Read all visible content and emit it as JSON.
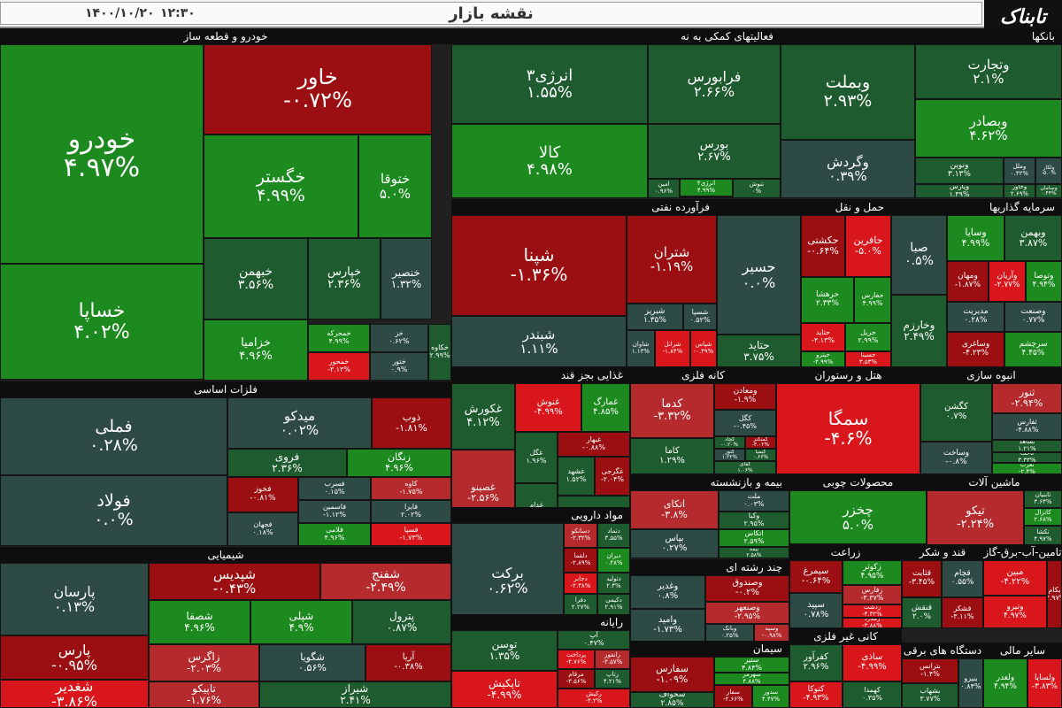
{
  "header": {
    "title": "نقشه بازار",
    "time": "۱۲:۳۰",
    "date": "۱۴۰۰/۱۰/۲۰",
    "logo_text": "تابناک"
  },
  "colors": {
    "dark_red": "#9b0f12",
    "red": "#d8161b",
    "mid_red": "#b52a2c",
    "slate": "#2d4a45",
    "dark_green": "#1e5b2e",
    "green": "#1c8a1f",
    "bright_green": "#17a513",
    "header_bg": "#0e0e0e"
  },
  "chart_data": {
    "type": "heatmap",
    "sectors": [
      {
        "name": "خودرو و قطعه ساز",
        "tiles": [
          {
            "name": "خودرو",
            "value": "۴.۹۷%"
          },
          {
            "name": "خساپا",
            "value": "۴.۰۲%"
          },
          {
            "name": "خاور",
            "value": "-۰.۷۲%"
          },
          {
            "name": "خگستر",
            "value": "۴.۹۹%"
          },
          {
            "name": "ختوقا",
            "value": "۵.۰%"
          },
          {
            "name": "خبهمن",
            "value": "۳.۵۶%"
          },
          {
            "name": "خپارس",
            "value": "۲.۳۶%"
          },
          {
            "name": "خنصیر",
            "value": "۱.۳۲%"
          },
          {
            "name": "خزامیا",
            "value": "۴.۹۶%"
          },
          {
            "name": "خمحرکه",
            "value": "۴.۹۹%"
          },
          {
            "name": "خمحور",
            "value": "-۳.۱۳%"
          },
          {
            "name": "خز",
            "value": "۰.۶۲%"
          },
          {
            "name": "ختور",
            "value": "۰.۹%"
          },
          {
            "name": "خکاوه",
            "value": "۲.۹۹%"
          }
        ]
      },
      {
        "name": "فعالیتهای کمکی به نه",
        "tiles": [
          {
            "name": "انرژی۳",
            "value": "۱.۵۵%"
          },
          {
            "name": "کالا",
            "value": "۴.۹۸%"
          },
          {
            "name": "فرابورس",
            "value": "۲.۶۶%"
          },
          {
            "name": "بورس",
            "value": "۲.۶۷%"
          },
          {
            "name": "امین",
            "value": "۰.۹۶%"
          },
          {
            "name": "انرژی۲",
            "value": "۴.۹۹%"
          },
          {
            "name": "تماوند",
            "value": "۲.۰۷%"
          },
          {
            "name": "تنوش",
            "value": "۰%"
          }
        ]
      },
      {
        "name": "بانکها",
        "tiles": [
          {
            "name": "وبملت",
            "value": "۲.۹۳%"
          },
          {
            "name": "وتجارت",
            "value": "۲.۱%"
          },
          {
            "name": "وبصادر",
            "value": "۴.۶۲%"
          },
          {
            "name": "وگردش",
            "value": "۰.۳۹%"
          },
          {
            "name": "ونوین",
            "value": "۳.۱۳%"
          },
          {
            "name": "وپارس",
            "value": "۱.۳۹%"
          },
          {
            "name": "وملل",
            "value": "۰.۴۲%"
          },
          {
            "name": "وخاور",
            "value": "۲.۶۹%"
          },
          {
            "name": "ولکار",
            "value": "-۵.۰%"
          },
          {
            "name": "وسامان",
            "value": "۰.۴۴%"
          },
          {
            "name": "وکار",
            "value": "۰.۴۸%"
          }
        ]
      },
      {
        "name": "فرآورده نفتی",
        "tiles": [
          {
            "name": "شپنا",
            "value": "-۱.۳۶%"
          },
          {
            "name": "شبندر",
            "value": "۱.۱۱%"
          },
          {
            "name": "شتران",
            "value": "-۱.۱۹%"
          },
          {
            "name": "شبریز",
            "value": "۱.۳۵%"
          },
          {
            "name": "شسپا",
            "value": "۰.۵۲%"
          },
          {
            "name": "شاوان",
            "value": "۱.۱۳%"
          },
          {
            "name": "شرانل",
            "value": "-۱.۸۴%"
          },
          {
            "name": "شپاس",
            "value": "-۰.۴۹%"
          },
          {
            "name": "شراز",
            "value": "-۲.۰۰%"
          }
        ]
      },
      {
        "name": "حمل و نقل",
        "tiles": [
          {
            "name": "حسیر",
            "value": "۰.۰%"
          },
          {
            "name": "حکشتی",
            "value": "-۰.۶۴%"
          },
          {
            "name": "حافرین",
            "value": "-۵.۰%"
          },
          {
            "name": "حتاید",
            "value": "۳.۷۵%"
          },
          {
            "name": "حرهشا",
            "value": "۲.۳۳%"
          },
          {
            "name": "حفارس",
            "value": "۴.۹۹%"
          },
          {
            "name": "حتاید",
            "value": "-۴.۱۳%"
          },
          {
            "name": "حریل",
            "value": "۲.۹۹%"
          },
          {
            "name": "حپترو",
            "value": "-۴.۹۹%"
          },
          {
            "name": "حسینا",
            "value": "۳.۵۳%"
          },
          {
            "name": "حتوکا",
            "value": "-۲.۲۶%"
          }
        ]
      },
      {
        "name": "سرمایه گذاریها",
        "tiles": [
          {
            "name": "صبا",
            "value": "۰.۵%"
          },
          {
            "name": "وسایا",
            "value": "۴.۹۹%"
          },
          {
            "name": "وبهمن",
            "value": "۳.۸۷%"
          },
          {
            "name": "ومهان",
            "value": "-۱.۸۷%"
          },
          {
            "name": "وآریان",
            "value": "-۲.۷۷%"
          },
          {
            "name": "وتوصا",
            "value": "۴.۹۴%"
          },
          {
            "name": "وخارزم",
            "value": "۲.۴۹%"
          },
          {
            "name": "مدیریت",
            "value": "۰.۲۸%"
          },
          {
            "name": "وصنعت",
            "value": "۰.۷۷%"
          },
          {
            "name": "وساغری",
            "value": "-۴.۲۳%"
          },
          {
            "name": "سرچشم",
            "value": "۴.۴۵%"
          }
        ]
      },
      {
        "name": "فلزات اساسی",
        "tiles": [
          {
            "name": "فملی",
            "value": "۰.۲۸%"
          },
          {
            "name": "فولاد",
            "value": "۰.۰%"
          },
          {
            "name": "میدکو",
            "value": "۰.۰۲%"
          },
          {
            "name": "ذوب",
            "value": "-۱.۸۱%"
          },
          {
            "name": "فروی",
            "value": "۲.۳۶%"
          },
          {
            "name": "زنگان",
            "value": "۴.۹۶%"
          },
          {
            "name": "فخوز",
            "value": "-۰.۸۱%"
          },
          {
            "name": "فسرب",
            "value": "۰.۱۵%"
          },
          {
            "name": "کاوه",
            "value": "-۱.۷۵%"
          },
          {
            "name": "فجهان",
            "value": "۰.۱۸%"
          },
          {
            "name": "فاسمین",
            "value": "-۱.۱۲%"
          },
          {
            "name": "فلامی",
            "value": "۴.۹۶%"
          },
          {
            "name": "فایرا",
            "value": "۲.۰۲%"
          },
          {
            "name": "فسپا",
            "value": "-۱.۷۳%"
          }
        ]
      },
      {
        "name": "شیمیایی",
        "tiles": [
          {
            "name": "پارسان",
            "value": "۰.۱۳%"
          },
          {
            "name": "پارس",
            "value": "-۰.۹۵%"
          },
          {
            "name": "شغدیر",
            "value": "-۳.۸۶%"
          },
          {
            "name": "شپدیس",
            "value": "-۰.۴۳%"
          },
          {
            "name": "شفنج",
            "value": "-۲.۴۹%"
          },
          {
            "name": "شصفا",
            "value": "۴.۹۶%"
          },
          {
            "name": "شپلی",
            "value": "۴.۹%"
          },
          {
            "name": "پترول",
            "value": "۰.۸۷%"
          },
          {
            "name": "زاگرس",
            "value": "-۲.۰۳%"
          },
          {
            "name": "شگویا",
            "value": "۰.۵۶%"
          },
          {
            "name": "آریا",
            "value": "-۰.۳۸%"
          },
          {
            "name": "تاپیکو",
            "value": "-۱.۷۶%"
          },
          {
            "name": "شیراز",
            "value": "۲.۴۱%"
          }
        ]
      },
      {
        "name": "غذایی بجز قند",
        "tiles": [
          {
            "name": "غکورش",
            "value": "۴.۱۲%"
          },
          {
            "name": "غنوش",
            "value": "-۴.۹۹%"
          },
          {
            "name": "غمارگ",
            "value": "۴.۸۵%"
          },
          {
            "name": "غصینو",
            "value": "-۲.۵۶%"
          },
          {
            "name": "غگل",
            "value": "۱.۹۶%"
          },
          {
            "name": "غبهار",
            "value": "-۰.۸۸%"
          },
          {
            "name": "غدام",
            "value": "۵.۰%"
          },
          {
            "name": "غشهد",
            "value": "۱.۵۲%"
          },
          {
            "name": "غگرجی",
            "value": "-۲.۰۴%"
          },
          {
            "name": "غگیلا",
            "value": "۱.۹۱%"
          }
        ]
      },
      {
        "name": "کانه فلزی",
        "tiles": [
          {
            "name": "کدما",
            "value": "-۳.۳۲%"
          },
          {
            "name": "ومعادن",
            "value": "-۱.۹%"
          },
          {
            "name": "کگل",
            "value": "-۰.۴۵%"
          },
          {
            "name": "کاما",
            "value": "۱.۲۹%"
          },
          {
            "name": "کچاد",
            "value": "-۰.۲۰%"
          },
          {
            "name": "کمنگنز",
            "value": "-۳.۰۲%"
          },
          {
            "name": "کنور",
            "value": "۱.۲۲%"
          },
          {
            "name": "کیمیا",
            "value": "۰.۶۶%"
          },
          {
            "name": "کفای",
            "value": "۱.۰۶%"
          }
        ]
      },
      {
        "name": "هتل و رستوران",
        "tiles": [
          {
            "name": "سمگا",
            "value": "-۴.۶%"
          }
        ]
      },
      {
        "name": "انبوه سازی",
        "tiles": [
          {
            "name": "کگشن",
            "value": "۰.۷%"
          },
          {
            "name": "ثنور",
            "value": "-۲.۹۴%"
          },
          {
            "name": "ثفارس",
            "value": "-۴.۸۸%"
          },
          {
            "name": "وساخت",
            "value": "-۰.۸%"
          },
          {
            "name": "ثشاهد",
            "value": "۱.۲۱%"
          },
          {
            "name": "ثاخت",
            "value": "۳.۳۳%"
          },
          {
            "name": "ثغرب",
            "value": "-۲.۴%"
          },
          {
            "name": "ثتران",
            "value": "۱.۱۲%"
          },
          {
            "name": "ثامان",
            "value": "۴.۹۵%"
          },
          {
            "name": "کده",
            "value": "۲.۳۳%"
          }
        ]
      },
      {
        "name": "مواد دارویی",
        "tiles": [
          {
            "name": "برکت",
            "value": "۰.۶۲%"
          },
          {
            "name": "دسانکو",
            "value": "-۲.۳۲%"
          },
          {
            "name": "دتماد",
            "value": "۳.۵۵%"
          },
          {
            "name": "دیران",
            "value": "۰.۴۸%"
          },
          {
            "name": "دلقما",
            "value": "-۲.۸۹%"
          },
          {
            "name": "دجابر",
            "value": "-۲.۳۸%"
          },
          {
            "name": "دتولید",
            "value": "۲.۴%"
          },
          {
            "name": "دفرا",
            "value": "۲.۲۷%"
          },
          {
            "name": "دکیمی",
            "value": "۲.۹۱%"
          },
          {
            "name": "دپارس",
            "value": "۰.۶۳%"
          }
        ]
      },
      {
        "name": "بیمه و بازنشسته",
        "tiles": [
          {
            "name": "اتکای",
            "value": "-۳.۸%"
          },
          {
            "name": "ملت",
            "value": "۰.۰۳%"
          },
          {
            "name": "وکبا",
            "value": "۲.۹۵%"
          },
          {
            "name": "بپاس",
            "value": "۰.۲۷%"
          },
          {
            "name": "اتکاس",
            "value": "۲.۵۹%"
          },
          {
            "name": "بیمه",
            "value": "۲.۵۸%"
          }
        ]
      },
      {
        "name": "محصولات چوبی",
        "tiles": [
          {
            "name": "چخزر",
            "value": "۵.۰%"
          }
        ]
      },
      {
        "name": "ماشین آلات",
        "tiles": [
          {
            "name": "تیکو",
            "value": "-۲.۲۴%"
          },
          {
            "name": "ثابنیان",
            "value": "۳.۶۴%"
          },
          {
            "name": "کاتزال",
            "value": "۲.۶۸%"
          },
          {
            "name": "تکشا",
            "value": "۴.۹۷%"
          },
          {
            "name": "تپکو",
            "value": "۱.۱۵%"
          }
        ]
      },
      {
        "name": "رایانه",
        "tiles": [
          {
            "name": "توسن",
            "value": "۱.۳۵%"
          },
          {
            "name": "تاپکیش",
            "value": "-۴.۹۹%"
          },
          {
            "name": "آپ",
            "value": "۰.۴۷%"
          },
          {
            "name": "پرداخت",
            "value": "-۴.۷۶%"
          },
          {
            "name": "رانفور",
            "value": "-۴.۵۷%"
          },
          {
            "name": "رتاپ",
            "value": "۴.۲۱%"
          },
          {
            "name": "مرقام",
            "value": "-۳.۵۶%"
          },
          {
            "name": "رکیش",
            "value": "-۴.۲%"
          }
        ]
      },
      {
        "name": "چند رشته ای",
        "tiles": [
          {
            "name": "وغدیر",
            "value": "۰.۸%"
          },
          {
            "name": "وصندوق",
            "value": "-۰.۲%"
          },
          {
            "name": "وصنعهر",
            "value": "-۲.۹۵%"
          },
          {
            "name": "وامید",
            "value": "-۱.۷۳%"
          },
          {
            "name": "وبانک",
            "value": "۰.۲۵%"
          },
          {
            "name": "وسپه",
            "value": "-۰.۹۸%"
          },
          {
            "name": "ورنا",
            "value": "-۵.۲۸%"
          }
        ]
      },
      {
        "name": "سیمان",
        "tiles": [
          {
            "name": "سفارس",
            "value": "-۱.۰۹%"
          },
          {
            "name": "سخواف",
            "value": "۲.۸۵%"
          },
          {
            "name": "ستیر",
            "value": "۴.۸۴%"
          },
          {
            "name": "سهرمز",
            "value": "۴.۸۸%"
          },
          {
            "name": "سفار",
            "value": "-۲.۶۶%"
          },
          {
            "name": "سدور",
            "value": "۴.۴۷%"
          },
          {
            "name": "سیتا",
            "value": "-۳.۲۱%"
          }
        ]
      },
      {
        "name": "زراعت",
        "tiles": [
          {
            "name": "سیمرغ",
            "value": "-۰.۶۴%"
          },
          {
            "name": "زکوثر",
            "value": "۴.۹۵%"
          },
          {
            "name": "زفارس",
            "value": "-۳.۳۷%"
          },
          {
            "name": "سپید",
            "value": "۰.۷۸%"
          },
          {
            "name": "زدشت",
            "value": "-۴.۳۲%"
          },
          {
            "name": "زملارد",
            "value": "-۳.۸۸%"
          }
        ]
      },
      {
        "name": "قند و شکر",
        "tiles": [
          {
            "name": "قثابت",
            "value": "-۳.۴۵%"
          },
          {
            "name": "قچام",
            "value": "۰.۵۵%"
          },
          {
            "name": "قنقش",
            "value": "۲.۰%"
          },
          {
            "name": "قشکر",
            "value": "-۳.۱۱%"
          }
        ]
      },
      {
        "name": "تامین-آب-برق-گاز",
        "tiles": [
          {
            "name": "مبین",
            "value": "-۴.۲۲%"
          },
          {
            "name": "وتیرو",
            "value": "۴.۹۷%"
          },
          {
            "name": "بکام",
            "value": "-۳.۹۷%"
          }
        ]
      },
      {
        "name": "کانی غیر فلزی",
        "tiles": [
          {
            "name": "کفرآور",
            "value": "۲.۹۶%"
          },
          {
            "name": "ساذی",
            "value": "-۴.۹۹%"
          },
          {
            "name": "کتوکا",
            "value": "-۴.۹۳%"
          },
          {
            "name": "کهمدا",
            "value": "۰.۳۵%"
          }
        ]
      },
      {
        "name": "دستگاه های برقی",
        "tiles": [
          {
            "name": "بترانس",
            "value": "-۱.۴%"
          },
          {
            "name": "بشهاب",
            "value": "۳.۷۷%"
          },
          {
            "name": "بنیرو",
            "value": "۰.۸۴%"
          }
        ]
      },
      {
        "name": "سایر مالی",
        "tiles": [
          {
            "name": "ولغدر",
            "value": "۴.۹۴%"
          },
          {
            "name": "ولساپا",
            "value": "-۳.۸۳%"
          }
        ]
      }
    ]
  }
}
